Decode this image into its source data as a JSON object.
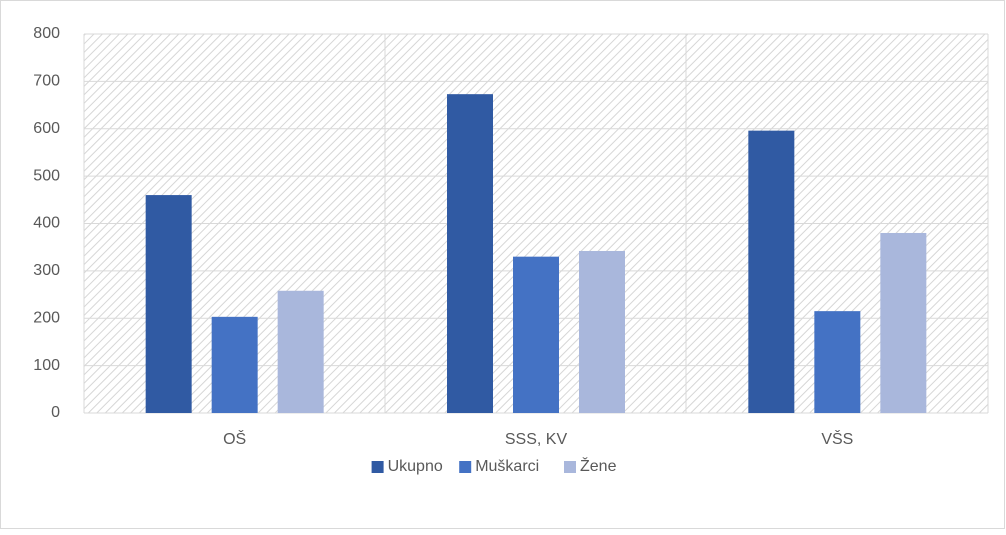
{
  "chart_data": {
    "type": "bar",
    "categories": [
      "OŠ",
      "SSS, KV",
      "VŠS"
    ],
    "series": [
      {
        "name": "Ukupno",
        "color": "#305aa3",
        "values": [
          460,
          673,
          596
        ]
      },
      {
        "name": "Muškarci",
        "color": "#4472c4",
        "values": [
          203,
          330,
          215
        ]
      },
      {
        "name": "Žene",
        "color": "#a9b7dc",
        "values": [
          258,
          342,
          380
        ]
      }
    ],
    "ylim": [
      0,
      800
    ],
    "yticks": [
      0,
      100,
      200,
      300,
      400,
      500,
      600,
      700,
      800
    ],
    "grid": true,
    "legend": "bottom"
  }
}
